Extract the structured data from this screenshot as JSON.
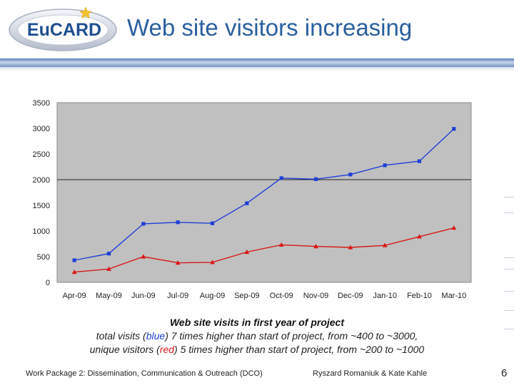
{
  "slide": {
    "logo_text": "EuCARD",
    "title": "Web site visitors increasing"
  },
  "caption": {
    "title": "Web site visits in first year of project",
    "line1_before": "total visits (",
    "line1_color_word": "blue",
    "line1_after": ") 7 times higher than start of project, from ~400 to ~3000,",
    "line2_before": "unique visitors (",
    "line2_color_word": "red",
    "line2_after": ") 5 times higher than start of project, from ~200 to ~1000"
  },
  "footer": {
    "work_package": "Work Package 2: Dissemination, Communication & Outreach (DCO)",
    "authors": "Ryszard Romaniuk & Kate Kahle",
    "page_number": "6"
  },
  "colors": {
    "title": "#2a5f9e",
    "total_series": "#1f3fd6",
    "unique_series": "#d81818",
    "plot_background": "#c0c0c0"
  },
  "chart_data": {
    "type": "line",
    "categories": [
      "Apr-09",
      "May-09",
      "Jun-09",
      "Jul-09",
      "Aug-09",
      "Sep-09",
      "Oct-09",
      "Nov-09",
      "Dec-09",
      "Jan-10",
      "Feb-10",
      "Mar-10"
    ],
    "series": [
      {
        "values": [
          430,
          560,
          1140,
          1170,
          1150,
          1540,
          2030,
          2010,
          2100,
          2280,
          2360,
          2990
        ],
        "color": "#1f3fd6",
        "marker": "square"
      },
      {
        "values": [
          200,
          260,
          500,
          380,
          390,
          590,
          730,
          700,
          680,
          720,
          890,
          1060
        ],
        "color": "#d81818",
        "marker": "triangle"
      }
    ],
    "yticks": [
      0,
      500,
      1000,
      1500,
      2000,
      2500,
      3000,
      3500
    ],
    "ylim": [
      0,
      3500
    ],
    "grid_lines": [
      2000
    ],
    "legend": "none"
  }
}
